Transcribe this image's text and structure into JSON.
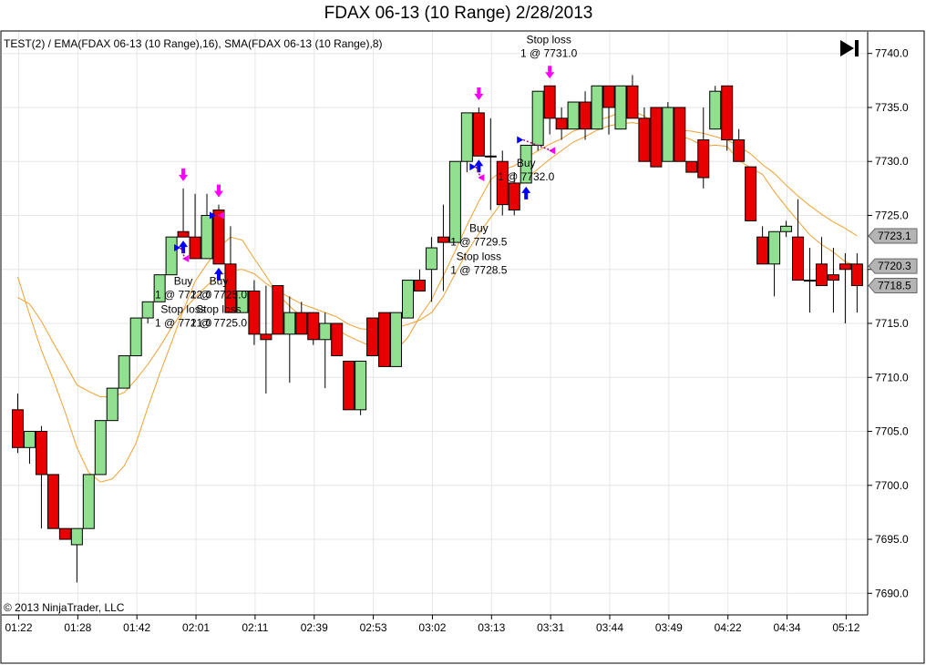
{
  "window": {
    "title": "FDAX 06-13 (10 Range)  2/28/2013"
  },
  "indicator_label": "TEST(2) /  EMA(FDAX 06-13 (10 Range),16),  SMA(FDAX 06-13 (10 Range),8)",
  "copyright": "© 2013 NinjaTrader, LLC",
  "toolbar": {
    "end_icon": "skip-to-end-icon"
  },
  "colors": {
    "up": "#90e090",
    "down": "#e80000",
    "ma": "#f0a030",
    "entry": "#0000ff",
    "exit": "#ff00ff",
    "grid": "#e6e6e6"
  },
  "chart_data": {
    "type": "candlestick",
    "title": "FDAX 06-13 (10 Range)  2/28/2013",
    "ylim": [
      7688.0,
      7742.0
    ],
    "yticks": [
      "7690.0",
      "7695.0",
      "7700.0",
      "7705.0",
      "7710.0",
      "7715.0",
      "7720.0",
      "7725.0",
      "7730.0",
      "7735.0",
      "7740.0"
    ],
    "xticks": [
      {
        "index": 0,
        "label": "01:22"
      },
      {
        "index": 5,
        "label": "01:28"
      },
      {
        "index": 10,
        "label": "01:42"
      },
      {
        "index": 15,
        "label": "02:01"
      },
      {
        "index": 20,
        "label": "02:11"
      },
      {
        "index": 25,
        "label": "02:39"
      },
      {
        "index": 30,
        "label": "02:53"
      },
      {
        "index": 35,
        "label": "03:02"
      },
      {
        "index": 40,
        "label": "03:13"
      },
      {
        "index": 45,
        "label": "03:31"
      },
      {
        "index": 50,
        "label": "03:44"
      },
      {
        "index": 55,
        "label": "03:49"
      },
      {
        "index": 60,
        "label": "04:22"
      },
      {
        "index": 65,
        "label": "04:34"
      },
      {
        "index": 70,
        "label": "05:12"
      }
    ],
    "bars": [
      [
        7707,
        7708.5,
        7703,
        7703.5
      ],
      [
        7703.5,
        7705,
        7702,
        7705
      ],
      [
        7705,
        7705.5,
        7696,
        7701
      ],
      [
        7701,
        7701,
        7696,
        7696
      ],
      [
        7696,
        7696,
        7695,
        7695
      ],
      [
        7694.5,
        7696,
        7691,
        7696
      ],
      [
        7696,
        7701,
        7696,
        7701
      ],
      [
        7701,
        7706,
        7701,
        7706
      ],
      [
        7706,
        7709,
        7706,
        7709
      ],
      [
        7709,
        7712,
        7709,
        7712
      ],
      [
        7712,
        7715.5,
        7712,
        7715.5
      ],
      [
        7715.5,
        7717,
        7715,
        7717
      ],
      [
        7717,
        7719.5,
        7717,
        7719.5
      ],
      [
        7719.5,
        7723,
        7719.5,
        7723
      ],
      [
        7723.5,
        7727.5,
        7723,
        7723
      ],
      [
        7723,
        7727,
        7721,
        7721
      ],
      [
        7721,
        7727,
        7721,
        7725
      ],
      [
        7725.5,
        7726,
        7720.5,
        7720.5
      ],
      [
        7720.5,
        7724,
        7716,
        7716
      ],
      [
        7716,
        7718,
        7716,
        7718
      ],
      [
        7718,
        7719,
        7713,
        7714
      ],
      [
        7714,
        7718.5,
        7708.5,
        7713.5
      ],
      [
        7718.5,
        7718.5,
        7714,
        7714
      ],
      [
        7714,
        7717.5,
        7709.5,
        7716
      ],
      [
        7716,
        7717,
        7714,
        7714
      ],
      [
        7716,
        7716,
        7713,
        7713.5
      ],
      [
        7713.5,
        7716,
        7709,
        7715
      ],
      [
        7715,
        7715,
        7712,
        7712
      ],
      [
        7711.5,
        7711.5,
        7707,
        7707
      ],
      [
        7707,
        7711.5,
        7706.5,
        7711.5
      ],
      [
        7715.5,
        7715.5,
        7712,
        7712
      ],
      [
        7716,
        7716,
        7711,
        7711
      ],
      [
        7711,
        7716,
        7711,
        7716
      ],
      [
        7715.5,
        7718,
        7715.5,
        7719
      ],
      [
        7719,
        7720,
        7718,
        7718
      ],
      [
        7720,
        7723,
        7717,
        7722
      ],
      [
        7723,
        7726,
        7718,
        7722.5
      ],
      [
        7722.5,
        7730,
        7722.5,
        7730
      ],
      [
        7730,
        7734.5,
        7729,
        7734.5
      ],
      [
        7734.5,
        7735,
        7730.5,
        7730.5
      ],
      [
        7730.5,
        7734,
        7725.5,
        7730.5
      ],
      [
        7730,
        7731,
        7725,
        7726
      ],
      [
        7728,
        7729,
        7725,
        7725.5
      ],
      [
        7728,
        7731.5,
        7728,
        7731.5
      ],
      [
        7731.5,
        7736.5,
        7731,
        7736.5
      ],
      [
        7737,
        7737,
        7732.5,
        7734
      ],
      [
        7734,
        7735,
        7732,
        7733
      ],
      [
        7733,
        7735.5,
        7733,
        7735.5
      ],
      [
        7735.5,
        7736.5,
        7732,
        7733
      ],
      [
        7733,
        7737,
        7733,
        7737
      ],
      [
        7737,
        7737,
        7732.5,
        7735
      ],
      [
        7733,
        7737,
        7733,
        7737
      ],
      [
        7737,
        7738,
        7734,
        7734
      ],
      [
        7734,
        7735,
        7730,
        7730
      ],
      [
        7735,
        7735,
        7729.5,
        7729.5
      ],
      [
        7730,
        7735.5,
        7730,
        7735
      ],
      [
        7735,
        7735,
        7730,
        7730
      ],
      [
        7730,
        7730,
        7729,
        7729
      ],
      [
        7732,
        7735,
        7727.5,
        7728.5
      ],
      [
        7733,
        7737,
        7733,
        7736.5
      ],
      [
        7737,
        7737,
        7731,
        7732
      ],
      [
        7732,
        7733,
        7730,
        7730
      ],
      [
        7729.5,
        7729.5,
        7724.5,
        7724.5
      ],
      [
        7723,
        7724,
        7720.5,
        7720.5
      ],
      [
        7720.5,
        7723.5,
        7717.5,
        7723.5
      ],
      [
        7723.5,
        7724.5,
        7723,
        7724
      ],
      [
        7723,
        7726.5,
        7719,
        7719
      ],
      [
        7719,
        7722,
        7716,
        7719
      ],
      [
        7720.5,
        7723,
        7718.5,
        7718.5
      ],
      [
        7719.5,
        7722,
        7716,
        7719
      ],
      [
        7720.5,
        7721.5,
        7715,
        7720
      ],
      [
        7720.5,
        7721.5,
        7716,
        7718.5
      ]
    ],
    "series": [
      {
        "type": "ema",
        "values": [
          7717.4,
          7716.8,
          7715.2,
          7713.2,
          7711.3,
          7709.3,
          7708.7,
          7708.2,
          7708.2,
          7708.6,
          7709.8,
          7711.2,
          7712.8,
          7714.6,
          7716.2,
          7717.4,
          7718.5,
          7719.4,
          7719.9,
          7720.0,
          7719.6,
          7718.7,
          7718.0,
          7717.4,
          7716.8,
          7716.4,
          7716.0,
          7715.6,
          7714.9,
          7714.5,
          7714.4,
          7714.4,
          7714.6,
          7714.9,
          7715.3,
          7716.0,
          7717.5,
          7719.6,
          7721.6,
          7723.3,
          7724.8,
          7726.3,
          7727.3,
          7728.4,
          7729.3,
          7730.2,
          7731.0,
          7731.8,
          7732.3,
          7732.9,
          7733.3,
          7733.5,
          7733.6,
          7733.4,
          7733.2,
          7733.1,
          7732.9,
          7732.8,
          7732.6,
          7732.3,
          7732.0,
          7731.4,
          7730.7,
          7729.7,
          7728.9,
          7727.8,
          7726.8,
          7725.9,
          7725.1,
          7724.4,
          7723.8,
          7723.1
        ]
      },
      {
        "type": "sma",
        "values": [
          7719.3,
          7715.8,
          7712.5,
          7709.8,
          7706.8,
          7703.5,
          7701.2,
          7700.3,
          7700.6,
          7701.8,
          7703.9,
          7707.2,
          7710.3,
          7713.2,
          7716.2,
          7718.9,
          7720.5,
          7722.0,
          7723.0,
          7722.7,
          7721.0,
          7719.4,
          7717.7,
          7716.6,
          7715.6,
          7714.9,
          7714.6,
          7714.4,
          7713.8,
          7713.3,
          7712.8,
          7712.3,
          7712.5,
          7713.7,
          7715.6,
          7717.2,
          7719.4,
          7721.7,
          7724.1,
          7726.3,
          7728.3,
          7729.2,
          7729.6,
          7730.3,
          7731.0,
          7731.6,
          7732.1,
          7732.8,
          7733.2,
          7733.8,
          7734.1,
          7734.6,
          7734.7,
          7734.2,
          7733.5,
          7732.8,
          7732.4,
          7732.0,
          7731.4,
          7731.5,
          7731.4,
          7730.1,
          7729.4,
          7728.8,
          7727.2,
          7725.8,
          7724.5,
          7723.2,
          7722.3,
          7721.6,
          7720.7,
          7720.3
        ]
      }
    ],
    "price_markers": [
      {
        "value": 7723.1,
        "label": "7723.1"
      },
      {
        "value": 7720.3,
        "label": "7720.3"
      },
      {
        "value": 7718.5,
        "label": "7718.5"
      }
    ],
    "trades": [
      {
        "entry_bar": 14,
        "entry_price": 7722.0,
        "entry_text": "Buy",
        "entry_detail": "1 @ 7722.0",
        "exit_bar": 14,
        "exit_price": 7721.0,
        "exit_text": "Stop loss",
        "exit_detail": "1 @ 7721.0",
        "annot_y": 7718.6
      },
      {
        "entry_bar": 17,
        "entry_price": 7725.0,
        "entry_text": "Buy",
        "entry_detail": "1 @ 7725.0",
        "exit_bar": 17,
        "exit_price": 7725.0,
        "exit_text": "Stop loss",
        "exit_detail": "1 @ 7725.0",
        "annot_y": 7718.6
      },
      {
        "entry_bar": 39,
        "entry_price": 7729.5,
        "entry_text": "Buy",
        "entry_detail": "1 @ 7729.5",
        "exit_bar": 39,
        "exit_price": 7728.5,
        "exit_text": "Stop loss",
        "exit_detail": "1 @ 7728.5",
        "annot_y": 7723.5
      },
      {
        "entry_bar": 43,
        "entry_price": 7732.0,
        "entry_text": "Buy",
        "entry_detail": "1 @ 7732.0",
        "exit_bar": 45,
        "exit_price": 7731.0,
        "exit_text": "Stop loss",
        "exit_detail": "1 @ 7731.0",
        "annot_y": 7729.5,
        "exit_annot_y": 7740.0
      }
    ]
  }
}
